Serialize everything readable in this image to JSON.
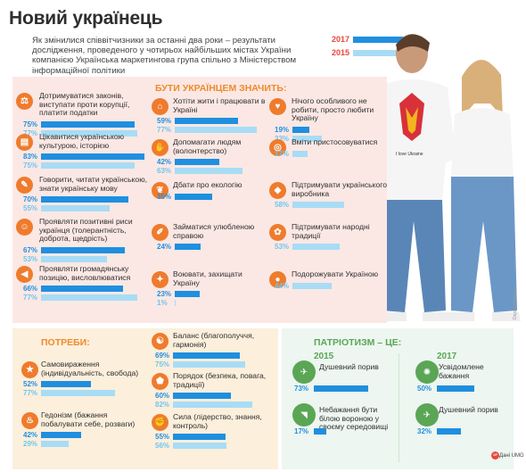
{
  "title": "Новий українець",
  "intro": "Як змінилися співвітчизники за останні два роки – результати дослідження, проведеного у чотирьох найбільших містах України компанією Українська маркетингова група спільно з Міністерством інформаційної політики",
  "legend": {
    "y2017": "2017",
    "y2015": "2015"
  },
  "colors": {
    "y2017": "#1f8fe0",
    "y2015": "#a8dcf5",
    "accent": "#ef7b2d",
    "green": "#5aa655"
  },
  "photo": {
    "credit": "Depositphotos",
    "shirt_text": "I love Ukraine"
  },
  "source": {
    "badge": "ᴳᴾ",
    "text": "Дані UMG"
  },
  "chart_data": {
    "type": "bar",
    "sections": [
      {
        "title": "БУТИ УКРАЇНЦЕМ ЗНАЧИТЬ:",
        "items": [
          {
            "label": "Дотримуватися законів, виступати проти корупції, платити податки",
            "icon": "scales-icon",
            "v2017": 75,
            "v2015": 77
          },
          {
            "label": "Цікавитися українською культурою, історією",
            "icon": "book-icon",
            "v2017": 83,
            "v2015": 75
          },
          {
            "label": "Говорити, читати українською, знати українську мову",
            "icon": "speech-icon",
            "v2017": 70,
            "v2015": 55
          },
          {
            "label": "Проявляти позитивні риси українця (толерантність, доброта, щедрість)",
            "icon": "people-icon",
            "v2017": 67,
            "v2015": 53
          },
          {
            "label": "Проявляти громадянську позицію, висловлюватися",
            "icon": "megaphone-icon",
            "v2017": 66,
            "v2015": 77
          },
          {
            "label": "Хотіти жити і працювати в Україні",
            "icon": "house-icon",
            "v2017": 59,
            "v2015": 77
          },
          {
            "label": "Допомагати людям (волонтерство)",
            "icon": "handshake-icon",
            "v2017": 42,
            "v2015": 63
          },
          {
            "label": "Дбати про екологію",
            "icon": "leaf-icon",
            "v2017": 35,
            "v2015": null
          },
          {
            "label": "Займатися улюбленою справою",
            "icon": "brush-icon",
            "v2017": 24,
            "v2015": null
          },
          {
            "label": "Воювати, захищати Україну",
            "icon": "sword-icon",
            "v2017": 23,
            "v2015": 1
          },
          {
            "label": "Нічого особливого не робити, просто любити Україну",
            "icon": "heart-icon",
            "v2017": 19,
            "v2015": 33
          },
          {
            "label": "Вміти пристосовуватися",
            "icon": "chameleon-icon",
            "v2017": null,
            "v2015": 17
          },
          {
            "label": "Підтримувати українського виробника",
            "icon": "tag-icon",
            "v2017": null,
            "v2015": 58
          },
          {
            "label": "Підтримувати народні традиції",
            "icon": "flower-icon",
            "v2017": null,
            "v2015": 53
          },
          {
            "label": "Подорожувати Україною",
            "icon": "map-pin-icon",
            "v2017": null,
            "v2015": 44
          }
        ]
      },
      {
        "title": "ПОТРЕБИ:",
        "items": [
          {
            "label": "Самовираження (індивідуальність, свобода)",
            "icon": "star-icon",
            "v2017": 52,
            "v2015": 77
          },
          {
            "label": "Гедонізм (бажання побалувати себе, розваги)",
            "icon": "cake-icon",
            "v2017": 42,
            "v2015": 29
          },
          {
            "label": "Баланс (благополуччя, гармонія)",
            "icon": "balance-icon",
            "v2017": 69,
            "v2015": 75
          },
          {
            "label": "Порядок (безпека, повага, традиції)",
            "icon": "shield-icon",
            "v2017": 60,
            "v2015": 82
          },
          {
            "label": "Сила (лідерство, знання, контроль)",
            "icon": "fist-icon",
            "v2017": 55,
            "v2015": 56
          }
        ]
      },
      {
        "title": "ПАТРІОТИЗМ – ЦЕ:",
        "groups": [
          {
            "year": "2015",
            "items": [
              {
                "label": "Душевний порив",
                "icon": "bird-icon",
                "value": 73
              },
              {
                "label": "Небажання бути білою вороною у своєму середовищі",
                "icon": "crow-icon",
                "value": 17
              }
            ]
          },
          {
            "year": "2017",
            "items": [
              {
                "label": "Усвідомлене бажання",
                "icon": "brain-icon",
                "value": 50
              },
              {
                "label": "Душевний порив",
                "icon": "bird-icon",
                "value": 32
              }
            ]
          }
        ]
      }
    ],
    "xlim": [
      0,
      100
    ]
  }
}
